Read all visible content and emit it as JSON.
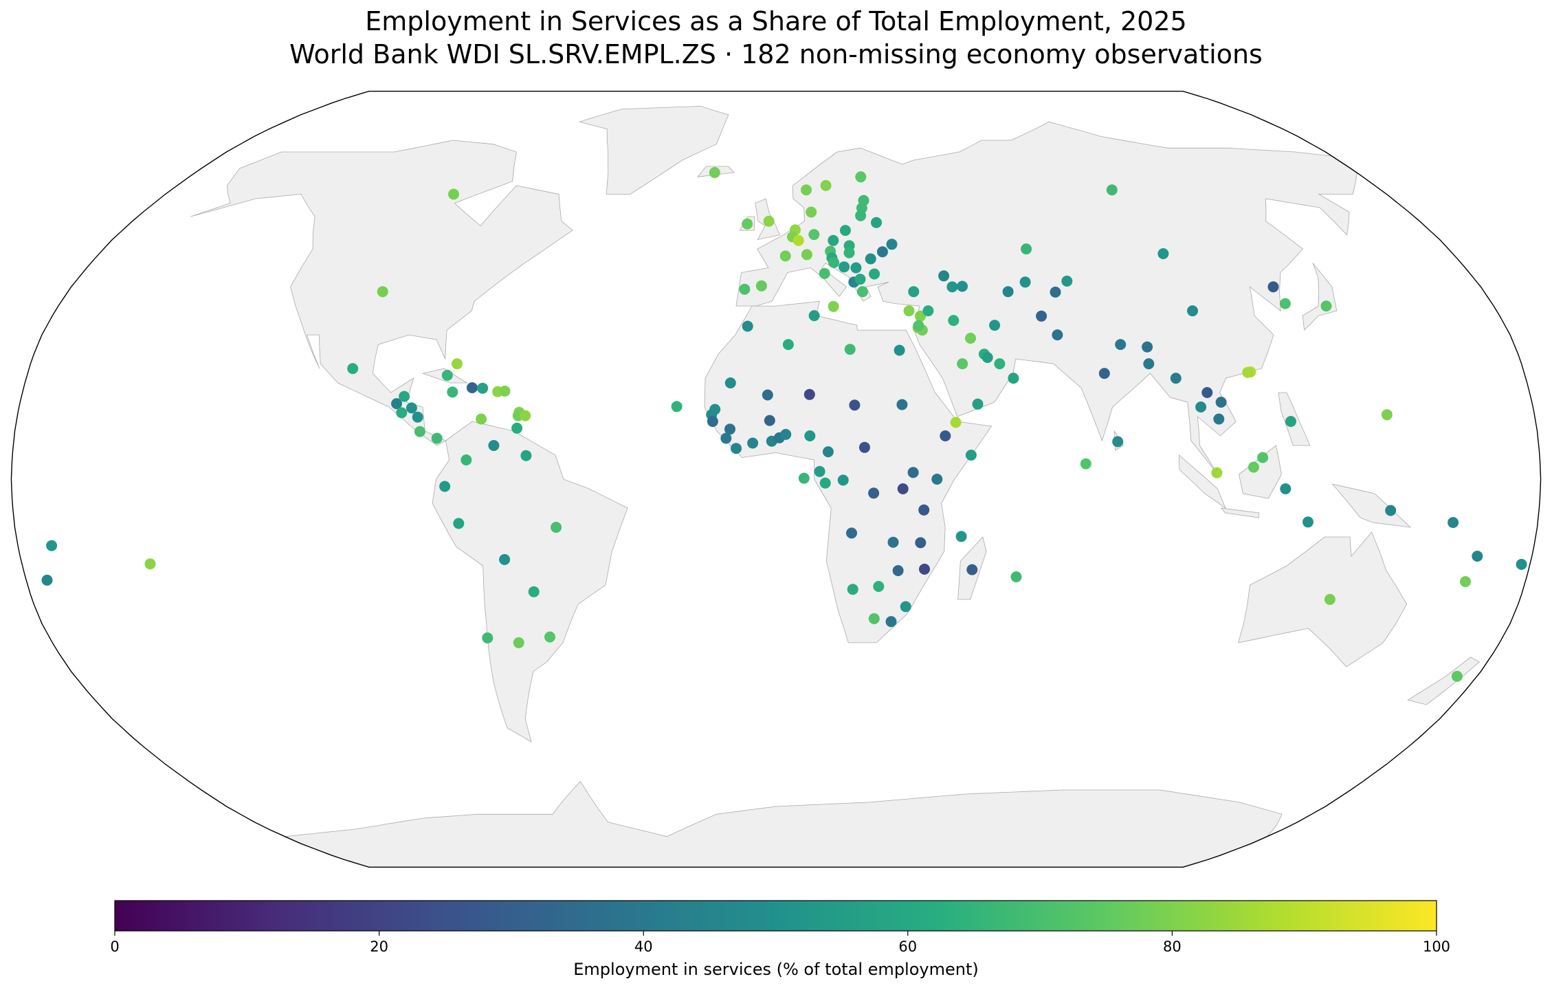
{
  "chart_data": {
    "type": "map",
    "title": "Employment in Services as a Share of Total Employment, 2025",
    "subtitle": "World Bank WDI SL.SRV.EMPL.ZS · 182 non-missing economy observations",
    "colorbar_label": "Employment in services (% of total employment)",
    "colormap": "viridis",
    "clim": [
      0,
      100
    ],
    "cticks": [
      0,
      20,
      40,
      60,
      80,
      100
    ],
    "lon": [
      -95,
      -100,
      -102,
      -90.3,
      -88.7,
      -86.6,
      -88.9,
      -85,
      -84.2,
      -80.1,
      -77,
      -79,
      -77.3,
      -72.7,
      -70.2,
      -66.5,
      -64.8,
      -61,
      -61.2,
      -59.5,
      -61.3,
      -69.9,
      -73,
      -66.6,
      -58.9,
      -78,
      -75,
      -52,
      -64.7,
      -58.4,
      -71.5,
      -64,
      -56,
      -172,
      -175,
      -149.4,
      160,
      167,
      178,
      165.6,
      174.9,
      134,
      145,
      145,
      125.7,
      120,
      114.7,
      112.5,
      103.8,
      122,
      106,
      103,
      105,
      101,
      96,
      114.2,
      113.5,
      104,
      103,
      127,
      128,
      138,
      79,
      90,
      90.4,
      84,
      80.7,
      73,
      69,
      66,
      54,
      59,
      64,
      71,
      74.8,
      100,
      67,
      44,
      47.6,
      45,
      50.5,
      51.2,
      54,
      57,
      48,
      36,
      35,
      35.9,
      38,
      33.2,
      35,
      43.4,
      45,
      47.6,
      30,
      18,
      9.5,
      3,
      -7,
      -10.9,
      -2,
      8,
      18.7,
      30,
      42.6,
      40,
      46,
      -14.5,
      -15.3,
      -15,
      -10.9,
      -23.6,
      -11.8,
      -9.4,
      -5.5,
      -1.5,
      -1,
      0.8,
      2.3,
      8,
      12.3,
      20.9,
      10.3,
      11.6,
      6.6,
      15.8,
      23,
      32.3,
      37.9,
      29.9,
      34.9,
      43.9,
      17.9,
      27.8,
      34.3,
      35.5,
      46.9,
      57.6,
      29.2,
      18.5,
      24.7,
      31.5,
      28.2,
      24,
      -19,
      9,
      15,
      26,
      25.5,
      24.6,
      23.9,
      28,
      -2,
      -8,
      10,
      5.3,
      4.5,
      6.1,
      2.5,
      10.4,
      19.1,
      15.5,
      19.7,
      14.5,
      8.2,
      19.5,
      31.2,
      28.4,
      25,
      14.8,
      15.2,
      17.8,
      20.9,
      20,
      21.7,
      25.5,
      22,
      12.6,
      14.4,
      -3.7,
      -8,
      35.2
    ],
    "lat": [
      60,
      39,
      23,
      15.7,
      17.2,
      14.8,
      13.8,
      12.9,
      9.9,
      8.5,
      24,
      21.6,
      18.1,
      19,
      18.9,
      18.2,
      18.3,
      13.9,
      13.2,
      13.2,
      10.6,
      12.5,
      4,
      7,
      4.9,
      -1.5,
      -9.2,
      -10,
      -16.7,
      -23.4,
      -33,
      -34,
      -32.8,
      -13.8,
      -21,
      -17.6,
      -9,
      -16,
      -17.7,
      -21.3,
      -41,
      -25,
      13.4,
      -6.5,
      -8.9,
      -2,
      4.5,
      2.5,
      1.35,
      12,
      16,
      18,
      12.5,
      15,
      21,
      22.3,
      22.2,
      35,
      47,
      40,
      36.5,
      36,
      22,
      24,
      27.5,
      28,
      7.8,
      3.2,
      30,
      33.9,
      32,
      39,
      41,
      38.9,
      41.2,
      61,
      48,
      33,
      29.3,
      24,
      26,
      25.3,
      24,
      21,
      15.6,
      31,
      31.5,
      33.9,
      35,
      35,
      39,
      42.3,
      40,
      40.1,
      26.8,
      27,
      34,
      28,
      31.8,
      20,
      17.5,
      17.6,
      15.4,
      15.5,
      11.8,
      9,
      5,
      14.5,
      13.4,
      12,
      10.4,
      15.1,
      8.5,
      6.4,
      7.5,
      12.2,
      7.9,
      8.6,
      9.3,
      9,
      5.7,
      6.6,
      1.6,
      -0.8,
      0.2,
      -0.2,
      -2.9,
      1.4,
      0.0,
      -2,
      -6.4,
      -11.9,
      -11.2,
      -13.1,
      -13.2,
      -18.7,
      -18.8,
      -20.3,
      -19,
      -22.9,
      -22.3,
      -26.5,
      -29.6,
      -29,
      65,
      61,
      62,
      64,
      58.6,
      56.9,
      55.2,
      53.7,
      54,
      53.4,
      56,
      52.1,
      50.6,
      49.8,
      46.5,
      51.1,
      52,
      49.8,
      48.7,
      47.5,
      46.8,
      47.2,
      49,
      47.4,
      45.9,
      46.1,
      45.1,
      44.2,
      44,
      41,
      41.6,
      42.7,
      39,
      42.8,
      35.9,
      40.2,
      39.5,
      31.9
    ],
    "values": [
      79,
      79,
      62,
      43,
      60,
      50,
      62,
      50,
      70,
      68,
      84,
      66,
      66,
      32,
      57,
      82,
      80,
      80,
      78,
      82,
      62,
      80,
      66,
      48,
      58,
      54,
      58,
      70,
      50,
      62,
      68,
      77,
      73,
      52,
      45,
      82,
      45,
      45,
      50,
      78,
      75,
      79,
      80,
      45,
      50,
      50,
      72,
      76,
      85,
      58,
      38,
      28,
      40,
      47,
      42,
      88,
      86,
      48,
      52,
      28,
      71,
      73,
      32,
      40,
      38,
      40,
      48,
      72,
      38,
      32,
      52,
      45,
      50,
      36,
      53,
      68,
      66,
      64,
      78,
      74,
      62,
      56,
      64,
      58,
      56,
      78,
      80,
      80,
      62,
      81,
      57,
      45,
      52,
      50,
      50,
      68,
      55,
      62,
      48,
      48,
      35,
      22,
      25,
      38,
      86,
      28,
      55,
      50,
      48,
      35,
      38,
      65,
      40,
      45,
      45,
      32,
      45,
      40,
      45,
      52,
      45,
      25,
      55,
      60,
      66,
      52,
      30,
      35,
      40,
      23,
      28,
      52,
      35,
      38,
      30,
      22,
      30,
      68,
      34,
      62,
      64,
      52,
      40,
      72,
      78,
      79,
      81,
      74,
      68,
      68,
      66,
      58,
      82,
      76,
      79,
      83,
      80,
      88,
      78,
      73,
      60,
      60,
      62,
      70,
      79,
      65,
      45,
      40,
      50,
      60,
      66,
      55,
      55,
      45,
      60,
      60,
      70,
      70,
      80,
      76,
      71,
      72
    ]
  }
}
